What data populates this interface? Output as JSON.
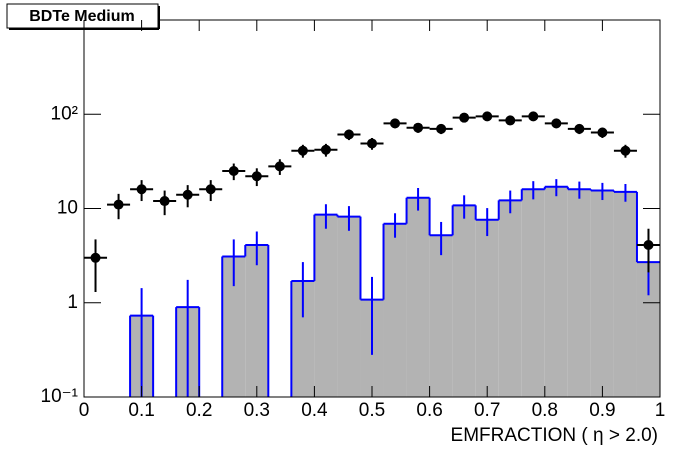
{
  "chart_data": {
    "type": "histogram-with-points",
    "title": "BDTe Medium",
    "x_label": "EMFRACTION ( η > 2.0)",
    "bins": [
      0,
      0.04,
      0.08,
      0.12,
      0.16,
      0.2,
      0.24,
      0.28,
      0.32,
      0.36,
      0.4,
      0.44,
      0.48,
      0.52,
      0.56,
      0.6,
      0.64,
      0.68,
      0.72,
      0.76,
      0.8,
      0.84,
      0.88,
      0.92,
      0.96,
      1
    ],
    "series": [
      {
        "name": "histogram",
        "color": "#0000ff",
        "fill": "#b3b3b3",
        "values": [
          0,
          0,
          0.73,
          0,
          0.9,
          0,
          3.1,
          4.1,
          0,
          1.7,
          8.6,
          8.2,
          1.08,
          6.9,
          13,
          5.2,
          10.8,
          7.6,
          12.2,
          16,
          17,
          16,
          15.5,
          15,
          2.7
        ],
        "errors": [
          0,
          0,
          0.7,
          0,
          0.85,
          0,
          1.6,
          1.6,
          0,
          1.0,
          2.5,
          2.4,
          0.8,
          2.0,
          3.5,
          2.0,
          3.0,
          2.5,
          3.3,
          3.5,
          3.5,
          3.3,
          3.2,
          3.2,
          1.5
        ]
      },
      {
        "name": "points",
        "color": "#000000",
        "values": [
          3.0,
          11,
          16,
          12,
          14,
          16,
          25,
          22,
          28,
          41,
          42,
          61,
          49,
          80,
          72,
          70,
          92,
          95,
          86,
          95,
          80,
          70,
          64,
          41,
          4.1
        ],
        "errors": [
          1.7,
          3.3,
          4,
          3.5,
          3.7,
          4,
          5,
          4.7,
          5.3,
          6.4,
          6.5,
          7.8,
          7,
          8.9,
          8.5,
          8.4,
          9.6,
          9.7,
          9.3,
          9.7,
          8.9,
          8.4,
          8,
          6.4,
          2.0
        ]
      }
    ],
    "xlim": [
      0,
      1
    ],
    "ylim": [
      0.1,
      1000
    ],
    "log_y": true,
    "xticks": [
      0,
      0.1,
      0.2,
      0.3,
      0.4,
      0.5,
      0.6,
      0.7,
      0.8,
      0.9,
      1
    ],
    "yticks": [
      {
        "value": 0.1,
        "label": "10⁻¹"
      },
      1,
      10,
      {
        "value": 100,
        "label": "10²"
      }
    ]
  }
}
